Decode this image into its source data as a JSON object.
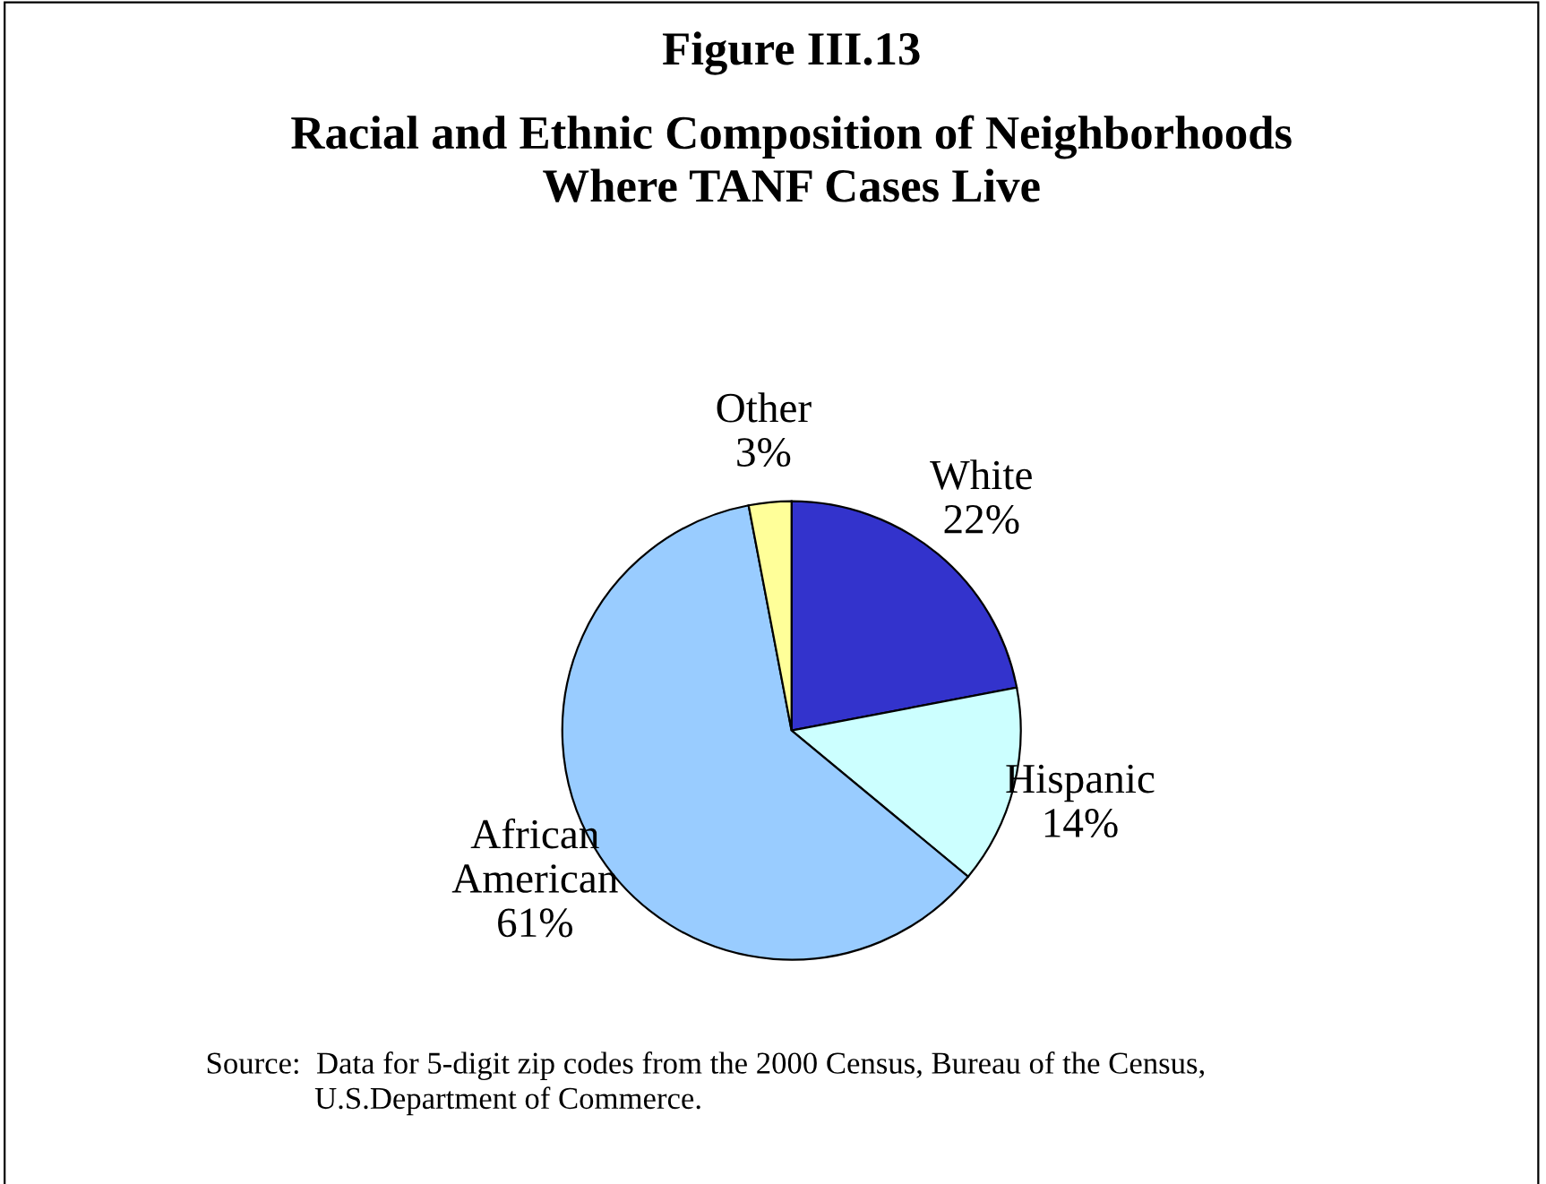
{
  "chart_data": {
    "type": "pie",
    "title": "Figure III.13",
    "subtitle": "Racial and Ethnic Composition of Neighborhoods\nWhere TANF Cases Live",
    "categories": [
      "White",
      "Hispanic",
      "African\nAmerican",
      "Other"
    ],
    "values": [
      22,
      14,
      61,
      3
    ],
    "value_labels": [
      "22%",
      "14%",
      "61%",
      "3%"
    ],
    "colors": [
      "#3333cc",
      "#ccffff",
      "#99ccff",
      "#ffff99"
    ],
    "annotations": [
      "Source:  Data for 5-digit zip codes from the 2000 Census, Bureau of the Census,\n              U.S.Department of Commerce."
    ]
  }
}
